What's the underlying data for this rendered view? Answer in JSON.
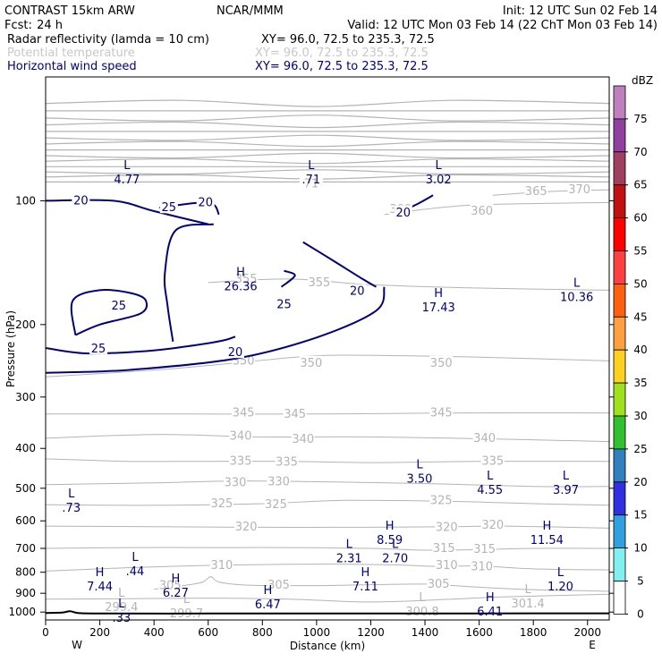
{
  "header": {
    "model": "CONTRAST 15km ARW",
    "org": "NCAR/MMM",
    "init": "Init: 12 UTC Sun 02 Feb 14",
    "fcst_label": "Fcst:",
    "fcst_value": "24 h",
    "valid": "Valid: 12 UTC Mon 03 Feb 14 (22 ChT Mon 03 Feb 14)",
    "fields": [
      {
        "name": "Radar reflectivity (lamda = 10 cm)",
        "xy": "XY=  96.0, 72.5 to 235.3, 72.5",
        "color": "#000000"
      },
      {
        "name": "Potential temperature",
        "xy": "XY=  96.0, 72.5 to 235.3, 72.5",
        "color": "#c8c8c8"
      },
      {
        "name": "Horizontal wind speed",
        "xy": "XY=  96.0, 72.5 to 235.3, 72.5",
        "color": "#000080"
      }
    ]
  },
  "colorbar": {
    "unit": "dBZ",
    "levels": [
      "75",
      "70",
      "65",
      "60",
      "55",
      "50",
      "45",
      "40",
      "35",
      "30",
      "25",
      "20",
      "15",
      "10",
      "5",
      "0"
    ],
    "colors": [
      "#c080c0",
      "#9040a0",
      "#a04060",
      "#c01010",
      "#ff0000",
      "#ff4040",
      "#ff6010",
      "#ffa040",
      "#ffd020",
      "#a0e020",
      "#30c030",
      "#3080c0",
      "#3030e0",
      "#30a0e0",
      "#80f0f0",
      "#ffffff"
    ]
  },
  "chart_data": {
    "type": "contour",
    "xlabel": "Distance (km)",
    "ylabel": "Pressure (hPa)",
    "xlim": [
      0,
      2080
    ],
    "ylim": [
      1045,
      50
    ],
    "y_scale": "log",
    "x_ticks": [
      0,
      200,
      400,
      600,
      800,
      1000,
      1200,
      1400,
      1600,
      1800,
      2000
    ],
    "y_ticks": [
      100,
      200,
      300,
      400,
      500,
      600,
      700,
      800,
      900,
      1000
    ],
    "x_end_labels": {
      "left": "W",
      "right": "E"
    },
    "colors": {
      "wind": "#000080",
      "theta": "#b4b4b4",
      "terrain": "#000000"
    },
    "wind_speed_contours": [
      {
        "level": 20,
        "points": [
          [
            0,
            262
          ],
          [
            300,
            258
          ],
          [
            700,
            242
          ],
          [
            1000,
            215
          ],
          [
            1220,
            185
          ],
          [
            1250,
            162
          ]
        ]
      },
      {
        "level": 20,
        "points": [
          [
            0,
            100
          ],
          [
            250,
            100
          ],
          [
            400,
            106
          ],
          [
            600,
            114
          ]
        ]
      },
      {
        "level": 20,
        "points": [
          [
            950,
            126
          ],
          [
            1070,
            141
          ],
          [
            1170,
            155
          ],
          [
            1220,
            162
          ]
        ]
      },
      {
        "level": 20,
        "points": [
          [
            1290,
            108
          ],
          [
            1370,
            102
          ],
          [
            1430,
            97
          ]
        ]
      },
      {
        "level": 25,
        "points": [
          [
            0,
            228
          ],
          [
            150,
            235
          ],
          [
            370,
            232
          ],
          [
            520,
            226
          ],
          [
            650,
            219
          ],
          [
            700,
            214
          ]
        ]
      },
      {
        "level": 25,
        "points": [
          [
            470,
            220
          ],
          [
            450,
            180
          ],
          [
            440,
            150
          ],
          [
            480,
            118
          ],
          [
            620,
            114
          ]
        ]
      },
      {
        "level": 25,
        "points": [
          [
            110,
            212
          ],
          [
            200,
            200
          ],
          [
            350,
            188
          ],
          [
            370,
            175
          ],
          [
            320,
            168
          ],
          [
            200,
            165
          ],
          [
            100,
            175
          ],
          [
            110,
            212
          ]
        ]
      },
      {
        "level": 25,
        "points": [
          [
            420,
            104
          ],
          [
            600,
            101
          ],
          [
            640,
            108
          ]
        ]
      },
      {
        "level": 25,
        "points": [
          [
            870,
            162
          ],
          [
            920,
            152
          ],
          [
            880,
            148
          ]
        ]
      }
    ],
    "wind_labels": [
      {
        "text": "20",
        "x": 130,
        "p": 100
      },
      {
        "text": "25",
        "x": 455,
        "p": 104
      },
      {
        "text": "20",
        "x": 590,
        "p": 101
      },
      {
        "text": "25",
        "x": 270,
        "p": 180
      },
      {
        "text": "25",
        "x": 195,
        "p": 229
      },
      {
        "text": "20",
        "x": 700,
        "p": 234
      },
      {
        "text": "25",
        "x": 880,
        "p": 179
      },
      {
        "text": "20",
        "x": 1150,
        "p": 166
      },
      {
        "text": "20",
        "x": 1320,
        "p": 107
      }
    ],
    "theta_contours": [
      {
        "level": 305,
        "points": [
          [
            400,
            880
          ],
          [
            520,
            860
          ],
          [
            580,
            845
          ],
          [
            610,
            820
          ],
          [
            640,
            845
          ],
          [
            750,
            860
          ],
          [
            1000,
            862
          ],
          [
            1200,
            858
          ],
          [
            1400,
            855
          ],
          [
            1600,
            870
          ],
          [
            1800,
            882
          ],
          [
            2080,
            890
          ]
        ]
      },
      {
        "level": 310,
        "points": [
          [
            0,
            795
          ],
          [
            300,
            780
          ],
          [
            600,
            770
          ],
          [
            900,
            765
          ],
          [
            1100,
            765
          ],
          [
            1300,
            768
          ],
          [
            1450,
            775
          ],
          [
            1600,
            772
          ],
          [
            1800,
            785
          ],
          [
            2080,
            790
          ]
        ]
      },
      {
        "level": 315,
        "points": [
          [
            0,
            700
          ],
          [
            300,
            697
          ],
          [
            600,
            697
          ],
          [
            900,
            697
          ],
          [
            1200,
            700
          ],
          [
            1400,
            707
          ],
          [
            1600,
            705
          ],
          [
            1800,
            700
          ],
          [
            2080,
            700
          ]
        ]
      },
      {
        "level": 320,
        "points": [
          [
            0,
            618
          ],
          [
            400,
            620
          ],
          [
            800,
            622
          ],
          [
            1200,
            622
          ],
          [
            1500,
            620
          ],
          [
            1700,
            618
          ],
          [
            2080,
            625
          ]
        ]
      },
      {
        "level": 325,
        "points": [
          [
            0,
            548
          ],
          [
            400,
            550
          ],
          [
            800,
            545
          ],
          [
            1100,
            535
          ],
          [
            1500,
            538
          ],
          [
            1800,
            545
          ],
          [
            2080,
            550
          ]
        ]
      },
      {
        "level": 330,
        "points": [
          [
            0,
            490
          ],
          [
            400,
            485
          ],
          [
            700,
            480
          ],
          [
            1000,
            482
          ],
          [
            1400,
            487
          ],
          [
            1800,
            495
          ],
          [
            2080,
            495
          ]
        ]
      },
      {
        "level": 335,
        "points": [
          [
            0,
            424
          ],
          [
            300,
            430
          ],
          [
            600,
            430
          ],
          [
            900,
            430
          ],
          [
            1200,
            433
          ],
          [
            1600,
            430
          ],
          [
            2080,
            430
          ]
        ]
      },
      {
        "level": 340,
        "points": [
          [
            0,
            378
          ],
          [
            400,
            370
          ],
          [
            800,
            375
          ],
          [
            1200,
            375
          ],
          [
            1700,
            380
          ],
          [
            2080,
            385
          ]
        ]
      },
      {
        "level": 345,
        "points": [
          [
            0,
            330
          ],
          [
            500,
            330
          ],
          [
            1000,
            330
          ],
          [
            1500,
            328
          ],
          [
            2080,
            328
          ]
        ]
      },
      {
        "level": 350,
        "points": [
          [
            0,
            268
          ],
          [
            400,
            258
          ],
          [
            700,
            248
          ],
          [
            1000,
            238
          ],
          [
            1300,
            238
          ],
          [
            1600,
            240
          ],
          [
            2080,
            245
          ]
        ]
      },
      {
        "level": 355,
        "points": [
          [
            600,
            158
          ],
          [
            900,
            155
          ],
          [
            1200,
            160
          ],
          [
            1600,
            163
          ],
          [
            2080,
            165
          ]
        ]
      },
      {
        "level": 360,
        "points": [
          [
            1250,
            108
          ],
          [
            1450,
            104
          ],
          [
            1650,
            102
          ],
          [
            2080,
            101
          ]
        ]
      },
      {
        "level": 365,
        "points": [
          [
            1650,
            97
          ],
          [
            1850,
            95
          ],
          [
            2080,
            94
          ]
        ]
      },
      {
        "level": 300,
        "points": [
          [
            0,
            930
          ],
          [
            300,
            928
          ],
          [
            600,
            925
          ],
          [
            900,
            930
          ],
          [
            1200,
            945
          ],
          [
            1500,
            930
          ],
          [
            1700,
            918
          ],
          [
            2080,
            905
          ]
        ]
      }
    ],
    "theta_stacked_top": {
      "p_top": 58,
      "p_bottom": 90,
      "count": 14
    },
    "theta_labels": [
      {
        "text": "305",
        "x": 460,
        "p": 862
      },
      {
        "text": "305",
        "x": 860,
        "p": 860
      },
      {
        "text": "305",
        "x": 1450,
        "p": 855
      },
      {
        "text": "310",
        "x": 650,
        "p": 770
      },
      {
        "text": "310",
        "x": 1480,
        "p": 770
      },
      {
        "text": "310",
        "x": 1610,
        "p": 775
      },
      {
        "text": "315",
        "x": 1470,
        "p": 700
      },
      {
        "text": "315",
        "x": 1620,
        "p": 703
      },
      {
        "text": "320",
        "x": 740,
        "p": 620
      },
      {
        "text": "320",
        "x": 1480,
        "p": 623
      },
      {
        "text": "320",
        "x": 1650,
        "p": 615
      },
      {
        "text": "325",
        "x": 650,
        "p": 545
      },
      {
        "text": "325",
        "x": 850,
        "p": 548
      },
      {
        "text": "325",
        "x": 1460,
        "p": 536
      },
      {
        "text": "330",
        "x": 700,
        "p": 485
      },
      {
        "text": "330",
        "x": 860,
        "p": 482
      },
      {
        "text": "335",
        "x": 720,
        "p": 430
      },
      {
        "text": "335",
        "x": 890,
        "p": 432
      },
      {
        "text": "335",
        "x": 1650,
        "p": 430
      },
      {
        "text": "340",
        "x": 720,
        "p": 373
      },
      {
        "text": "340",
        "x": 950,
        "p": 380
      },
      {
        "text": "340",
        "x": 1620,
        "p": 378
      },
      {
        "text": "345",
        "x": 730,
        "p": 328
      },
      {
        "text": "345",
        "x": 920,
        "p": 330
      },
      {
        "text": "345",
        "x": 1460,
        "p": 328
      },
      {
        "text": "350",
        "x": 730,
        "p": 245
      },
      {
        "text": "350",
        "x": 980,
        "p": 248
      },
      {
        "text": "350",
        "x": 1460,
        "p": 248
      },
      {
        "text": "355",
        "x": 740,
        "p": 155
      },
      {
        "text": "355",
        "x": 1010,
        "p": 158
      },
      {
        "text": "360",
        "x": 1610,
        "p": 106
      },
      {
        "text": "365",
        "x": 1810,
        "p": 95
      },
      {
        "text": "370",
        "x": 1970,
        "p": 94
      },
      {
        "text": "300",
        "x": 1310,
        "p": 105
      },
      {
        "text": "71",
        "x": 980,
        "p": 91
      }
    ],
    "wind_extrema": [
      {
        "kind": "L",
        "value": "4.77",
        "x": 300,
        "p": 88
      },
      {
        "kind": "L",
        "value": ".71",
        "x": 980,
        "p": 88
      },
      {
        "kind": "L",
        "value": "3.02",
        "x": 1450,
        "p": 88
      },
      {
        "kind": "H",
        "value": "26.36",
        "x": 720,
        "p": 160
      },
      {
        "kind": "H",
        "value": "17.43",
        "x": 1450,
        "p": 180
      },
      {
        "kind": "L",
        "value": "10.36",
        "x": 1960,
        "p": 170
      },
      {
        "kind": "L",
        "value": "3.50",
        "x": 1380,
        "p": 470
      },
      {
        "kind": "L",
        "value": "4.55",
        "x": 1640,
        "p": 500
      },
      {
        "kind": "L",
        "value": "3.97",
        "x": 1920,
        "p": 500
      },
      {
        "kind": "L",
        "value": ".73",
        "x": 95,
        "p": 553
      },
      {
        "kind": "H",
        "value": "8.59",
        "x": 1270,
        "p": 662
      },
      {
        "kind": "H",
        "value": "11.54",
        "x": 1850,
        "p": 662
      },
      {
        "kind": "L",
        "value": "2.31",
        "x": 1120,
        "p": 735
      },
      {
        "kind": "L",
        "value": "2.70",
        "x": 1290,
        "p": 735
      },
      {
        "kind": "L",
        "value": ".44",
        "x": 330,
        "p": 790
      },
      {
        "kind": "H",
        "value": "7.44",
        "x": 200,
        "p": 860
      },
      {
        "kind": "H",
        "value": "7.11",
        "x": 1180,
        "p": 860
      },
      {
        "kind": "L",
        "value": "1.20",
        "x": 1900,
        "p": 860
      },
      {
        "kind": "H",
        "value": "6.27",
        "x": 480,
        "p": 890
      },
      {
        "kind": "H",
        "value": "6.47",
        "x": 820,
        "p": 950
      },
      {
        "kind": "H",
        "value": "6.41",
        "x": 1640,
        "p": 990
      },
      {
        "kind": "L",
        "value": ".33",
        "x": 280,
        "p": 1025
      }
    ],
    "theta_extrema": [
      {
        "kind": "L",
        "value": "299.4",
        "x": 280,
        "p": 975
      },
      {
        "kind": "L",
        "value": "299.7",
        "x": 520,
        "p": 1010
      },
      {
        "kind": "L",
        "value": "300.8",
        "x": 1390,
        "p": 1000
      },
      {
        "kind": "L",
        "value": "301.4",
        "x": 1780,
        "p": 955
      }
    ],
    "terrain": [
      [
        0,
        1005
      ],
      [
        60,
        1003
      ],
      [
        90,
        995
      ],
      [
        120,
        1005
      ],
      [
        200,
        1008
      ],
      [
        600,
        1008
      ],
      [
        1000,
        1008
      ],
      [
        1400,
        1008
      ],
      [
        1800,
        1007
      ],
      [
        2080,
        1007
      ]
    ]
  }
}
